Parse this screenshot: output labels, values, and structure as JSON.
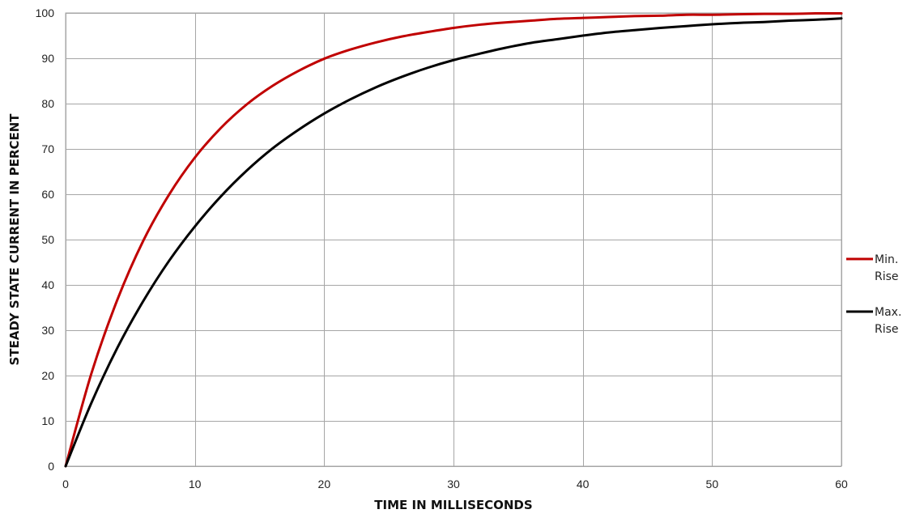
{
  "chart_data": {
    "type": "line",
    "title": "",
    "xlabel": "TIME IN MILLISECONDS",
    "ylabel": "STEADY STATE CURRENT IN PERCENT",
    "xlim": [
      0,
      60
    ],
    "ylim": [
      0,
      100
    ],
    "xticks": [
      "0",
      "10",
      "20",
      "30",
      "40",
      "50",
      "60"
    ],
    "yticks": [
      "0",
      "10",
      "20",
      "30",
      "40",
      "50",
      "60",
      "70",
      "80",
      "90",
      "100"
    ],
    "grid": true,
    "legend_position": "right",
    "x": [
      0,
      2,
      4,
      6,
      8,
      10,
      12,
      14,
      16,
      18,
      20,
      22,
      24,
      26,
      28,
      30,
      32,
      34,
      36,
      38,
      40,
      42,
      44,
      46,
      48,
      50,
      52,
      54,
      56,
      58,
      60
    ],
    "series": [
      {
        "name": "Min. Rise",
        "legend_lines": [
          "Min.",
          "Rise"
        ],
        "color": "#c00000",
        "values": [
          0,
          20.5,
          36.7,
          49.7,
          59.9,
          68.1,
          74.6,
          79.8,
          83.9,
          87.2,
          89.9,
          91.9,
          93.5,
          94.8,
          95.8,
          96.7,
          97.4,
          97.9,
          98.3,
          98.7,
          98.9,
          99.1,
          99.3,
          99.4,
          99.6,
          99.6,
          99.7,
          99.8,
          99.8,
          99.9,
          99.9
        ]
      },
      {
        "name": "Max. Rise",
        "legend_lines": [
          "Max.",
          "Rise"
        ],
        "color": "#000000",
        "values": [
          0,
          14.0,
          26.1,
          36.4,
          45.3,
          52.9,
          59.5,
          65.2,
          70.1,
          74.2,
          77.8,
          80.9,
          83.6,
          85.9,
          87.9,
          89.6,
          91.0,
          92.3,
          93.4,
          94.2,
          95.0,
          95.7,
          96.2,
          96.7,
          97.1,
          97.5,
          97.8,
          98.0,
          98.3,
          98.5,
          98.8
        ]
      }
    ]
  }
}
